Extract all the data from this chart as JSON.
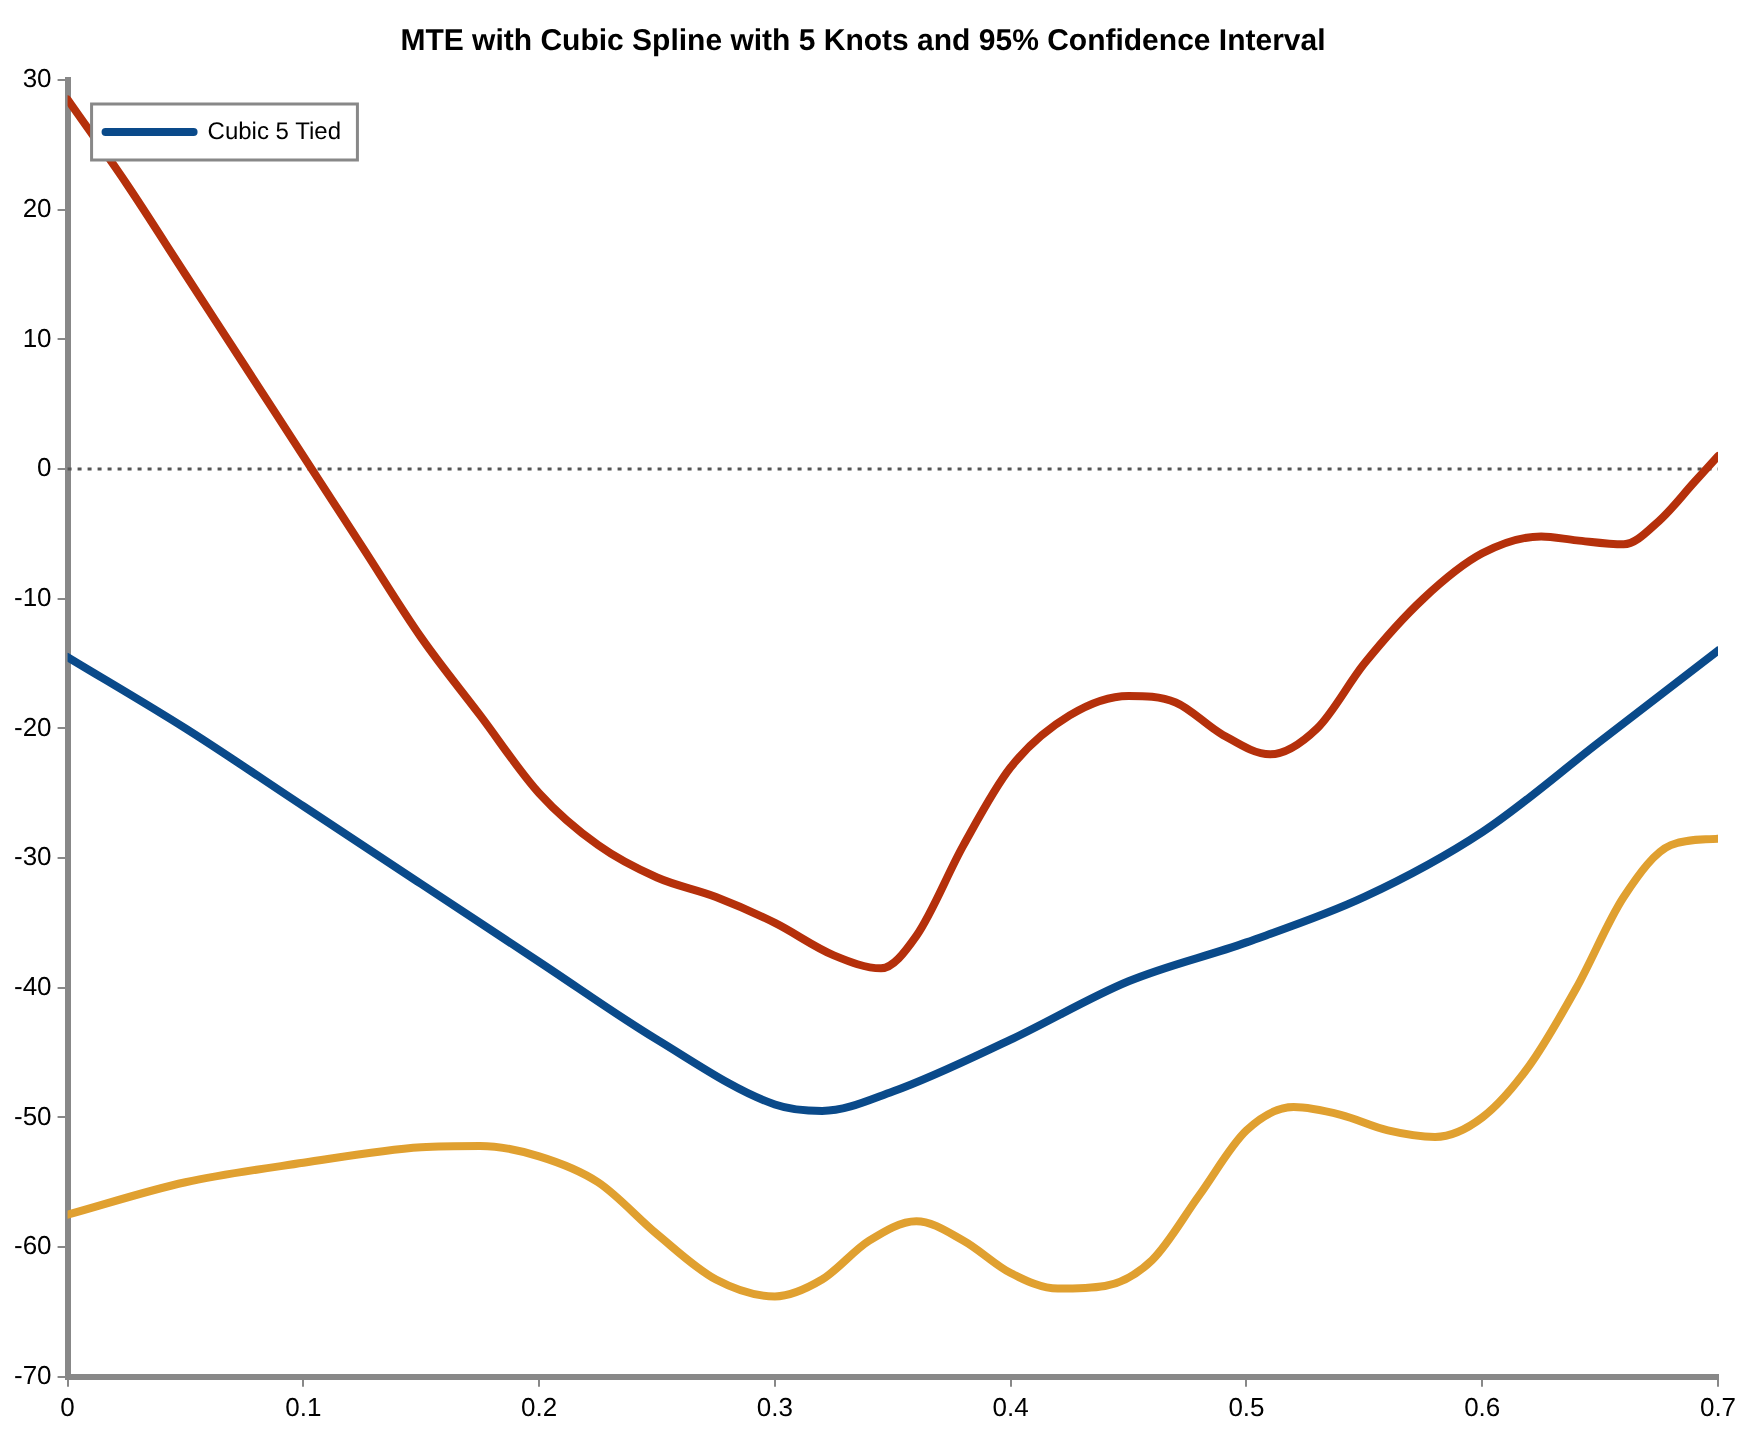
{
  "chart_data": {
    "type": "line",
    "title": "MTE with Cubic Spline with 5 Knots and 95% Confidence Interval",
    "xlim": [
      0,
      0.7
    ],
    "xticks": [
      0,
      0.1,
      0.2,
      0.3,
      0.4,
      0.5,
      0.6,
      0.7
    ],
    "ylim": [
      -70,
      30
    ],
    "yticks": [
      -70,
      -60,
      -50,
      -40,
      -30,
      -20,
      -10,
      0,
      10,
      20,
      30
    ],
    "grid": false,
    "legend": "top left",
    "marker": "none",
    "line_style": "solid",
    "ref_lines": [
      {
        "axis": "y",
        "value": 0,
        "line_style": "dotted",
        "color": "#555555"
      }
    ],
    "series": [
      {
        "name": "Cubic 5 Tied",
        "color": "#0a4a8a",
        "x": [
          0,
          0.05,
          0.1,
          0.15,
          0.2,
          0.25,
          0.3,
          0.32,
          0.35,
          0.4,
          0.45,
          0.5,
          0.55,
          0.6,
          0.65,
          0.7
        ],
        "values": [
          -14.5,
          -20,
          -26,
          -32,
          -38,
          -44,
          -49,
          -49.5,
          -48,
          -44,
          -39.5,
          -36.5,
          -33,
          -28,
          -21,
          -14
        ]
      },
      {
        "color": "#b5300b",
        "x": [
          0,
          0.025,
          0.05,
          0.075,
          0.1,
          0.125,
          0.15,
          0.175,
          0.2,
          0.225,
          0.25,
          0.275,
          0.3,
          0.325,
          0.345,
          0.36,
          0.38,
          0.4,
          0.425,
          0.45,
          0.47,
          0.49,
          0.51,
          0.53,
          0.55,
          0.575,
          0.6,
          0.625,
          0.64,
          0.66,
          0.675,
          0.69,
          0.7
        ],
        "values": [
          28.5,
          22,
          15,
          8,
          1,
          -6,
          -13,
          -19,
          -25,
          -29,
          -31.5,
          -33,
          -35,
          -37.5,
          -38.5,
          -36,
          -29,
          -23,
          -19,
          -17.5,
          -18,
          -20.5,
          -22,
          -20,
          -15,
          -10,
          -6.5,
          -5.2,
          -5.5,
          -5.8,
          -4,
          -1,
          1
        ]
      },
      {
        "color": "#e0a030",
        "x": [
          0,
          0.05,
          0.1,
          0.15,
          0.175,
          0.2,
          0.225,
          0.25,
          0.275,
          0.3,
          0.32,
          0.34,
          0.36,
          0.38,
          0.4,
          0.42,
          0.44,
          0.46,
          0.48,
          0.5,
          0.52,
          0.54,
          0.56,
          0.58,
          0.6,
          0.62,
          0.64,
          0.66,
          0.68,
          0.7
        ],
        "values": [
          -57.5,
          -55,
          -53.5,
          -52.3,
          -52.2,
          -53,
          -55,
          -59,
          -62.5,
          -63.8,
          -62.5,
          -59.5,
          -58,
          -59.5,
          -62,
          -63.2,
          -63,
          -61,
          -56,
          -51,
          -49.2,
          -49.8,
          -51,
          -51.5,
          -50,
          -46,
          -40,
          -33,
          -29,
          -28.5
        ]
      }
    ]
  }
}
